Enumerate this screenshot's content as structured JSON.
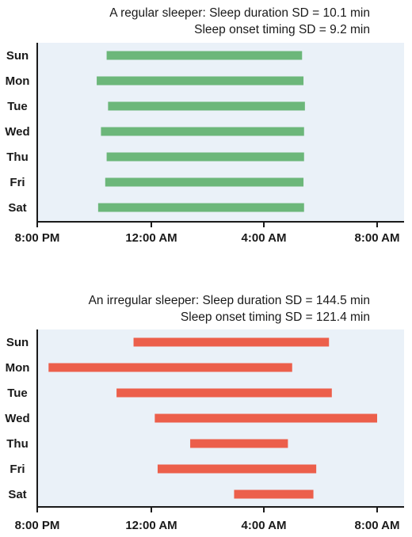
{
  "colors": {
    "panel_bg": "#eaf1f8",
    "axis": "#1a1a1a",
    "regular_bar": "#6cb77a",
    "irregular_bar": "#ec5f4b"
  },
  "chart_data": [
    {
      "type": "bar",
      "orientation": "horizontal-range",
      "title_lines": [
        "A regular sleeper: Sleep duration SD = 10.1 min",
        "Sleep onset timing SD = 9.2 min"
      ],
      "categories": [
        "Sun",
        "Mon",
        "Tue",
        "Wed",
        "Thu",
        "Fri",
        "Sat"
      ],
      "x_ticks": [
        "8:00 PM",
        "12:00 AM",
        "4:00 AM",
        "8:00 AM"
      ],
      "x_unit": "hours after 8:00 PM",
      "xlim": [
        0,
        12
      ],
      "series": [
        {
          "color": "#6cb77a",
          "ranges": [
            [
              2.45,
              9.35
            ],
            [
              2.1,
              9.4
            ],
            [
              2.5,
              9.45
            ],
            [
              2.25,
              9.42
            ],
            [
              2.45,
              9.42
            ],
            [
              2.4,
              9.4
            ],
            [
              2.15,
              9.42
            ]
          ]
        }
      ],
      "grid": false,
      "legend": "none"
    },
    {
      "type": "bar",
      "orientation": "horizontal-range",
      "title_lines": [
        "An irregular sleeper: Sleep duration SD = 144.5 min",
        "Sleep onset timing SD = 121.4 min"
      ],
      "categories": [
        "Sun",
        "Mon",
        "Tue",
        "Wed",
        "Thu",
        "Fri",
        "Sat"
      ],
      "x_ticks": [
        "8:00 PM",
        "12:00 AM",
        "4:00 AM",
        "8:00 AM"
      ],
      "x_unit": "hours after 8:00 PM",
      "xlim": [
        0,
        12
      ],
      "series": [
        {
          "color": "#ec5f4b",
          "ranges": [
            [
              3.4,
              10.3
            ],
            [
              0.4,
              9.0
            ],
            [
              2.8,
              10.4
            ],
            [
              4.15,
              12.0
            ],
            [
              5.4,
              8.85
            ],
            [
              4.25,
              9.85
            ],
            [
              6.95,
              9.75
            ]
          ]
        }
      ],
      "grid": false,
      "legend": "none"
    }
  ]
}
